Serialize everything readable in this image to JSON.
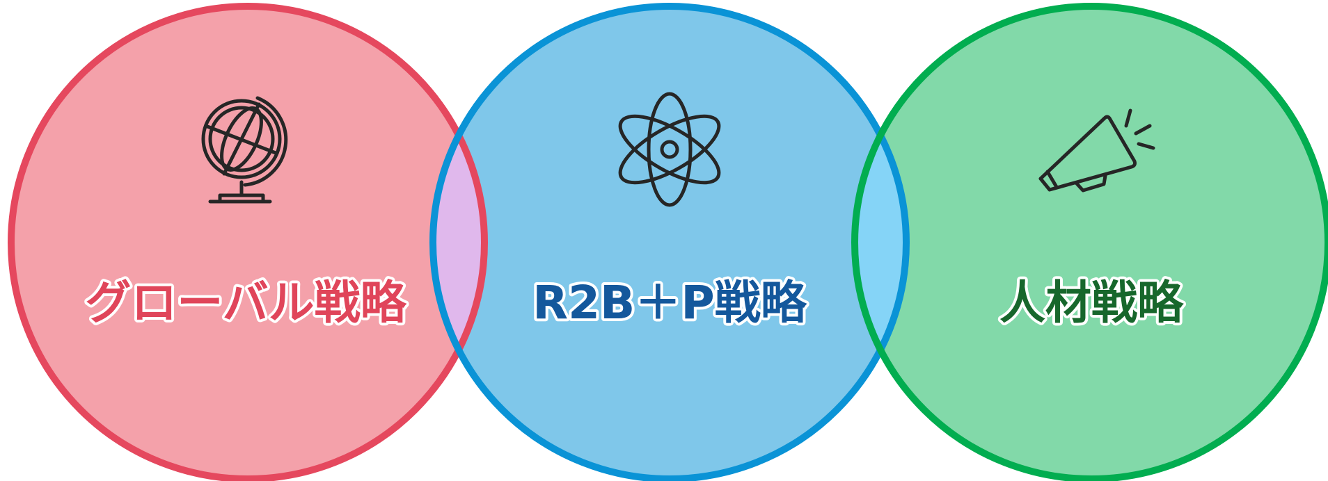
{
  "items": [
    {
      "label": "グローバル戦略"
    },
    {
      "label": "R2B＋P戦略"
    },
    {
      "label": "人材戦略"
    }
  ]
}
